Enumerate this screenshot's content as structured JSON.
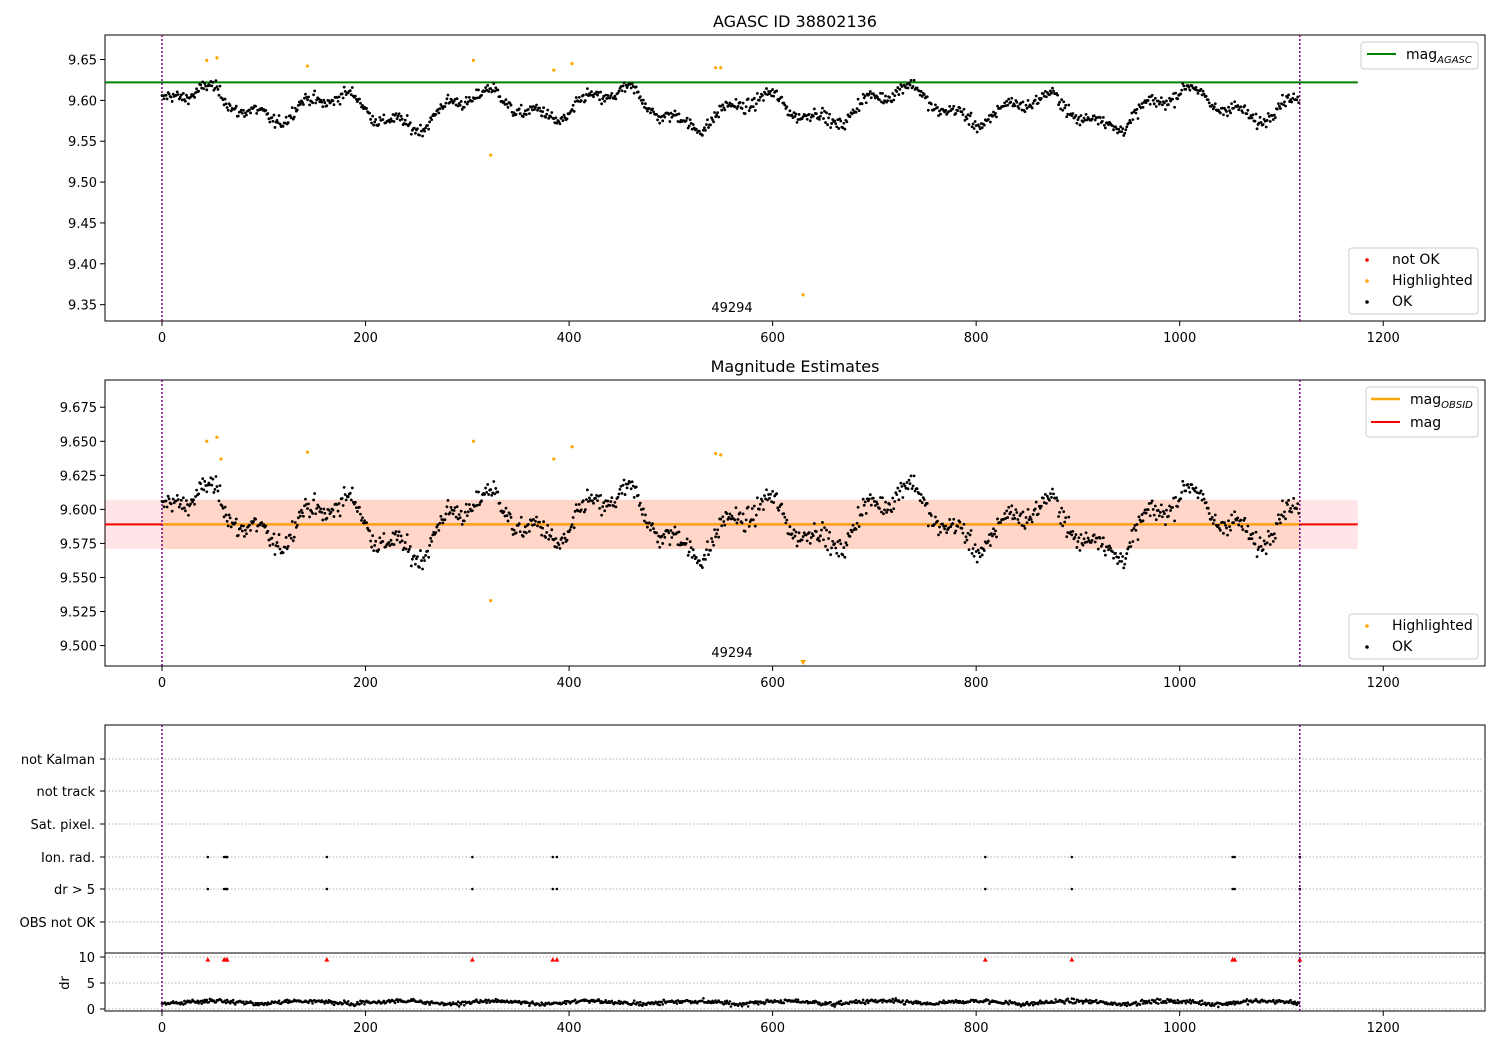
{
  "colors": {
    "agasc_line": "#008000",
    "obsid_line": "#ffa500",
    "mag_line": "#ff0000",
    "band_outer": "#ffe4e8",
    "band_inner": "#ffd6c8",
    "ok": "#000000",
    "highlighted": "#ffa500",
    "not_ok": "#ff0000",
    "boundary": "#800080",
    "grid": "#b0b0b0"
  },
  "chart_data": [
    {
      "type": "scatter",
      "title": "AGASC ID 38802136",
      "xlim": [
        -56,
        1300
      ],
      "ylim": [
        9.33,
        9.68
      ],
      "x_ticks": [
        "0",
        "200",
        "400",
        "600",
        "800",
        "1000",
        "1200"
      ],
      "y_ticks": [
        "9.35",
        "9.40",
        "9.45",
        "9.50",
        "9.55",
        "9.60",
        "9.65"
      ],
      "mag_agasc": 9.622,
      "obsid_boundaries": [
        0,
        1118
      ],
      "obsid_label": "49294",
      "legend_lines": [
        {
          "name": "mag",
          "sub": "AGASC"
        }
      ],
      "legend_points": [
        "not OK",
        "Highlighted",
        "OK"
      ],
      "series": {
        "description": "mag per sample; roughly 1118 OK samples",
        "x_range": [
          0,
          1120
        ],
        "y_range": [
          9.545,
          9.635
        ],
        "highlighted_points": [
          [
            44,
            9.649
          ],
          [
            54,
            9.652
          ],
          [
            143,
            9.642
          ],
          [
            306,
            9.649
          ],
          [
            385,
            9.637
          ],
          [
            403,
            9.645
          ],
          [
            544,
            9.64
          ],
          [
            549,
            9.64
          ],
          [
            323,
            9.533
          ],
          [
            630,
            9.362
          ]
        ]
      }
    },
    {
      "type": "scatter",
      "title": "Magnitude Estimates",
      "xlim": [
        -56,
        1300
      ],
      "ylim": [
        9.485,
        9.695
      ],
      "x_ticks": [
        "0",
        "200",
        "400",
        "600",
        "800",
        "1000",
        "1200"
      ],
      "y_ticks": [
        "9.500",
        "9.525",
        "9.550",
        "9.575",
        "9.600",
        "9.625",
        "9.650",
        "9.675"
      ],
      "mag_obsid": 9.589,
      "mag": 9.589,
      "mag_band": [
        9.571,
        9.607
      ],
      "obsid_boundaries": [
        0,
        1118
      ],
      "obsid_label": "49294",
      "legend_lines": [
        {
          "name": "mag",
          "sub": "OBSID"
        },
        {
          "name": "mag",
          "sub": ""
        }
      ],
      "legend_points": [
        "Highlighted",
        "OK"
      ],
      "series": {
        "description": "mag per sample",
        "x_range": [
          0,
          1120
        ],
        "y_range": [
          9.545,
          9.635
        ],
        "highlighted_points": [
          [
            44,
            9.65
          ],
          [
            54,
            9.653
          ],
          [
            58,
            9.637
          ],
          [
            143,
            9.642
          ],
          [
            306,
            9.65
          ],
          [
            385,
            9.637
          ],
          [
            403,
            9.646
          ],
          [
            544,
            9.641
          ],
          [
            549,
            9.64
          ],
          [
            323,
            9.533
          ]
        ]
      }
    },
    {
      "type": "scatter",
      "title": "",
      "xlim": [
        -56,
        1300
      ],
      "x_ticks": [
        "0",
        "200",
        "400",
        "600",
        "800",
        "1000",
        "1200"
      ],
      "flag_rows": [
        "not Kalman",
        "not track",
        "Sat. pixel.",
        "Ion. rad.",
        "dr > 5",
        "OBS not OK"
      ],
      "flag_points": {
        "Ion. rad.": [
          45,
          61,
          63,
          64,
          162,
          305,
          384,
          388,
          809,
          894,
          1052,
          1054,
          1118
        ],
        "dr > 5": [
          45,
          61,
          63,
          64,
          162,
          305,
          384,
          388,
          809,
          894,
          1052,
          1054,
          1118
        ]
      },
      "dr_ylim": [
        0,
        10
      ],
      "dr_ticks": [
        "0",
        "5",
        "10"
      ],
      "dr_ylabel": "dr",
      "dr_flagged_x": [
        45,
        61,
        63,
        64,
        162,
        305,
        384,
        388,
        809,
        894,
        1052,
        1054,
        1118
      ],
      "obsid_boundaries": [
        0,
        1118
      ]
    }
  ]
}
